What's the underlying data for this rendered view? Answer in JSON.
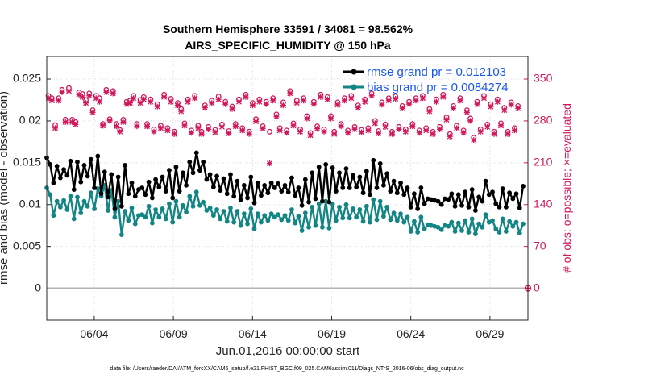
{
  "chart_data": {
    "type": "line",
    "title": "Southern Hemisphere 33591 / 34081 = 98.562%",
    "subtitle": "AIRS_SPECIFIC_HUMIDITY @ 150 hPa",
    "xlabel": "Jun.01,2016 00:00:00 start",
    "ylabel": "rmse and bias (model - observation)",
    "ylabel_right": "# of obs: o=possible; ×=evaluated",
    "x_ticks": [
      "06/04",
      "06/09",
      "06/14",
      "06/19",
      "06/24",
      "06/29"
    ],
    "y_ticks": [
      "0",
      "0.005",
      "0.01",
      "0.015",
      "0.02",
      "0.025"
    ],
    "y_right_ticks": [
      "0",
      "70",
      "140",
      "210",
      "280",
      "350"
    ],
    "ylim": [
      -0.0038,
      0.0277
    ],
    "ylim_right": [
      -53.2,
      387.8
    ],
    "legend_position": "top-right",
    "footnote": "data file: /Users/raeder/DAI/ATM_forcXX/CAM6_setup/f.e21.FHIST_BGC.f09_025.CAM6assim.011/Diags_NTrS_2016-06/obs_diag_output.nc",
    "colors": {
      "rmse": "#000000",
      "bias": "#138585",
      "obs": "#d1195a",
      "legend_text": "#1a56f0",
      "zero_line": "#b3b3b3"
    },
    "series": [
      {
        "name": "rmse grand pr = 0.012103",
        "key": "rmse",
        "values": [
          0.0156,
          0.0148,
          0.0126,
          0.0146,
          0.0132,
          0.0142,
          0.0135,
          0.0152,
          0.0118,
          0.0151,
          0.0127,
          0.0147,
          0.0134,
          0.0154,
          0.012,
          0.0158,
          0.0113,
          0.0139,
          0.0109,
          0.0136,
          0.0095,
          0.0133,
          0.0098,
          0.0147,
          0.0113,
          0.0126,
          0.011,
          0.0118,
          0.012,
          0.0112,
          0.0127,
          0.0108,
          0.013,
          0.0121,
          0.0133,
          0.0116,
          0.0141,
          0.0108,
          0.0145,
          0.0116,
          0.0138,
          0.0123,
          0.0151,
          0.0138,
          0.0162,
          0.0141,
          0.0151,
          0.013,
          0.0136,
          0.0121,
          0.0134,
          0.0117,
          0.0131,
          0.0113,
          0.0136,
          0.011,
          0.0128,
          0.0106,
          0.0123,
          0.0108,
          0.0133,
          0.0102,
          0.0126,
          0.0111,
          0.0123,
          0.0114,
          0.0126,
          0.012,
          0.0125,
          0.0116,
          0.0123,
          0.0115,
          0.0132,
          0.0111,
          0.012,
          0.0099,
          0.013,
          0.0103,
          0.0138,
          0.0107,
          0.0145,
          0.0104,
          0.0148,
          0.0103,
          0.0144,
          0.0116,
          0.0138,
          0.012,
          0.0143,
          0.012,
          0.0135,
          0.0121,
          0.0133,
          0.0114,
          0.014,
          0.0112,
          0.0153,
          0.012,
          0.0149,
          0.0123,
          0.0137,
          0.0116,
          0.0128,
          0.0114,
          0.0126,
          0.0112,
          0.012,
          0.0097,
          0.0113,
          0.0095,
          0.012,
          0.0101,
          0.0107,
          0.0106,
          0.0105,
          0.0104,
          0.01,
          0.0107,
          0.0106,
          0.0113,
          0.0098,
          0.0112,
          0.0099,
          0.0115,
          0.0097,
          0.0118,
          0.0093,
          0.0109,
          0.0104,
          0.0128,
          0.0112,
          0.0115,
          0.0101,
          0.0097,
          0.0119,
          0.0097,
          0.0114,
          0.0107,
          0.0113,
          0.0096,
          0.0122
        ]
      },
      {
        "name": "bias grand pr = 0.0084274",
        "key": "bias",
        "values": [
          0.012,
          0.0112,
          0.0087,
          0.0104,
          0.0097,
          0.0105,
          0.0094,
          0.011,
          0.0083,
          0.0109,
          0.009,
          0.0104,
          0.0098,
          0.0114,
          0.0095,
          0.0119,
          0.011,
          0.0123,
          0.0093,
          0.0117,
          0.0085,
          0.0104,
          0.0064,
          0.0092,
          0.0081,
          0.0096,
          0.0077,
          0.0087,
          0.0088,
          0.0085,
          0.0098,
          0.0078,
          0.0094,
          0.0085,
          0.0095,
          0.0083,
          0.0101,
          0.0079,
          0.0104,
          0.0085,
          0.0099,
          0.0091,
          0.011,
          0.0098,
          0.0115,
          0.0099,
          0.0103,
          0.0093,
          0.0096,
          0.0087,
          0.0094,
          0.0083,
          0.0092,
          0.008,
          0.0096,
          0.0079,
          0.0092,
          0.0075,
          0.0089,
          0.0077,
          0.0095,
          0.0071,
          0.0089,
          0.0079,
          0.0087,
          0.0081,
          0.0089,
          0.0085,
          0.0088,
          0.0082,
          0.0087,
          0.0081,
          0.0094,
          0.0078,
          0.0086,
          0.0069,
          0.009,
          0.0073,
          0.0097,
          0.0075,
          0.0101,
          0.0073,
          0.0104,
          0.0072,
          0.0101,
          0.0081,
          0.0097,
          0.0084,
          0.01,
          0.0084,
          0.0095,
          0.0085,
          0.0094,
          0.008,
          0.0098,
          0.0079,
          0.0106,
          0.0082,
          0.0104,
          0.0086,
          0.0097,
          0.0082,
          0.009,
          0.0081,
          0.0089,
          0.0079,
          0.0085,
          0.0068,
          0.008,
          0.0067,
          0.0085,
          0.0071,
          0.0076,
          0.0075,
          0.0074,
          0.0073,
          0.007,
          0.0075,
          0.0074,
          0.0079,
          0.0068,
          0.0078,
          0.0069,
          0.0081,
          0.0067,
          0.0083,
          0.0065,
          0.0077,
          0.0073,
          0.0088,
          0.0079,
          0.0081,
          0.0071,
          0.0067,
          0.0083,
          0.0068,
          0.008,
          0.0074,
          0.0079,
          0.0066,
          0.0077
        ]
      }
    ],
    "obs_possible": [
      322,
      318,
      273,
      318,
      332,
      282,
      335,
      282,
      278,
      328,
      325,
      315,
      326,
      298,
      322,
      318,
      275,
      332,
      283,
      330,
      275,
      265,
      282,
      312,
      314,
      322,
      275,
      315,
      320,
      275,
      316,
      266,
      308,
      272,
      324,
      268,
      317,
      262,
      310,
      300,
      276,
      316,
      264,
      322,
      272,
      262,
      306,
      270,
      314,
      265,
      321,
      274,
      312,
      263,
      304,
      275,
      316,
      268,
      324,
      262,
      310,
      283,
      316,
      271,
      312,
      262,
      318,
      291,
      268,
      311,
      264,
      330,
      276,
      314,
      266,
      318,
      288,
      260,
      312,
      271,
      324,
      266,
      320,
      288,
      262,
      311,
      275,
      318,
      264,
      322,
      270,
      306,
      265,
      316,
      268,
      326,
      280,
      263,
      311,
      274,
      318,
      262,
      321,
      270,
      305,
      266,
      312,
      275,
      318,
      264,
      322,
      268,
      300,
      262,
      316,
      270,
      324,
      286,
      258,
      305,
      272,
      318,
      264,
      298,
      284,
      252,
      312,
      266,
      322,
      274,
      308,
      262,
      316,
      276,
      302,
      262,
      311,
      268,
      305
    ],
    "obs_evaluated": [
      318,
      314,
      268,
      314,
      328,
      278,
      330,
      278,
      274,
      324,
      320,
      310,
      322,
      294,
      318,
      312,
      272,
      328,
      280,
      326,
      271,
      262,
      278,
      308,
      310,
      318,
      271,
      310,
      316,
      271,
      312,
      262,
      304,
      268,
      320,
      264,
      312,
      258,
      306,
      296,
      272,
      312,
      260,
      318,
      268,
      258,
      302,
      266,
      310,
      261,
      316,
      270,
      308,
      259,
      300,
      271,
      312,
      264,
      320,
      258,
      306,
      279,
      312,
      267,
      308,
      209,
      314,
      287,
      264,
      306,
      260,
      326,
      272,
      310,
      262,
      314,
      284,
      256,
      308,
      267,
      320,
      262,
      316,
      284,
      258,
      307,
      271,
      314,
      260,
      318,
      266,
      302,
      261,
      312,
      264,
      322,
      276,
      259,
      307,
      270,
      314,
      258,
      317,
      266,
      301,
      262,
      308,
      271,
      314,
      260,
      318,
      264,
      296,
      258,
      312,
      266,
      320,
      282,
      254,
      301,
      268,
      314,
      260,
      294,
      280,
      248,
      308,
      262,
      318,
      270,
      304,
      258,
      312,
      272,
      298,
      258,
      307,
      264,
      301
    ],
    "obs_tail_zero": {
      "value": 0,
      "label": "0"
    }
  }
}
